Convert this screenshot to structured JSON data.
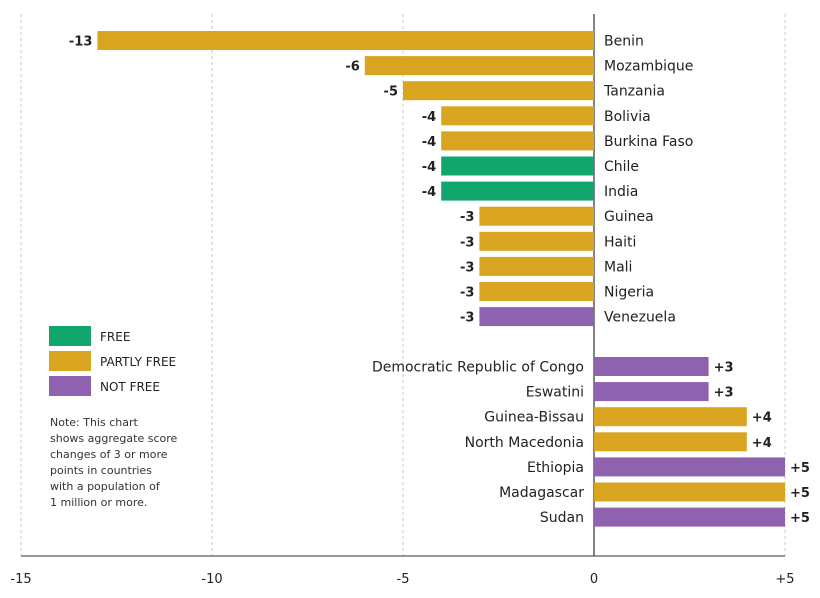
{
  "chart_data": {
    "type": "bar",
    "orientation": "horizontal",
    "xlim": [
      -15,
      5
    ],
    "x_ticks": [
      -15,
      -10,
      -5,
      0,
      5
    ],
    "x_tick_labels": [
      "-15",
      "-10",
      "-5",
      "0",
      "+5"
    ],
    "grid": true,
    "legend_placement": "left",
    "colors": {
      "free": "#10a66d",
      "partly_free": "#d9a520",
      "not_free": "#8f62b0"
    },
    "legend": [
      {
        "key": "free",
        "label": "FREE"
      },
      {
        "key": "partly_free",
        "label": "PARTLY FREE"
      },
      {
        "key": "not_free",
        "label": "NOT FREE"
      }
    ],
    "bars": [
      {
        "country": "Benin",
        "value": -13,
        "label": "-13",
        "status": "partly_free"
      },
      {
        "country": "Mozambique",
        "value": -6,
        "label": "-6",
        "status": "partly_free"
      },
      {
        "country": "Tanzania",
        "value": -5,
        "label": "-5",
        "status": "partly_free"
      },
      {
        "country": "Bolivia",
        "value": -4,
        "label": "-4",
        "status": "partly_free"
      },
      {
        "country": "Burkina Faso",
        "value": -4,
        "label": "-4",
        "status": "partly_free"
      },
      {
        "country": "Chile",
        "value": -4,
        "label": "-4",
        "status": "free"
      },
      {
        "country": "India",
        "value": -4,
        "label": "-4",
        "status": "free"
      },
      {
        "country": "Guinea",
        "value": -3,
        "label": "-3",
        "status": "partly_free"
      },
      {
        "country": "Haiti",
        "value": -3,
        "label": "-3",
        "status": "partly_free"
      },
      {
        "country": "Mali",
        "value": -3,
        "label": "-3",
        "status": "partly_free"
      },
      {
        "country": "Nigeria",
        "value": -3,
        "label": "-3",
        "status": "partly_free"
      },
      {
        "country": "Venezuela",
        "value": -3,
        "label": "-3",
        "status": "not_free"
      },
      {
        "country": "Democratic Republic of Congo",
        "value": 3,
        "label": "+3",
        "status": "not_free"
      },
      {
        "country": "Eswatini",
        "value": 3,
        "label": "+3",
        "status": "not_free"
      },
      {
        "country": "Guinea-Bissau",
        "value": 4,
        "label": "+4",
        "status": "partly_free"
      },
      {
        "country": "North Macedonia",
        "value": 4,
        "label": "+4",
        "status": "partly_free"
      },
      {
        "country": "Ethiopia",
        "value": 5,
        "label": "+5",
        "status": "not_free"
      },
      {
        "country": "Madagascar",
        "value": 5,
        "label": "+5",
        "status": "partly_free"
      },
      {
        "country": "Sudan",
        "value": 5,
        "label": "+5",
        "status": "not_free"
      }
    ],
    "note": [
      "Note: This chart",
      "shows aggregate score",
      "changes of 3 or more",
      "points in countries",
      "with a population of",
      "1 million or more."
    ]
  }
}
